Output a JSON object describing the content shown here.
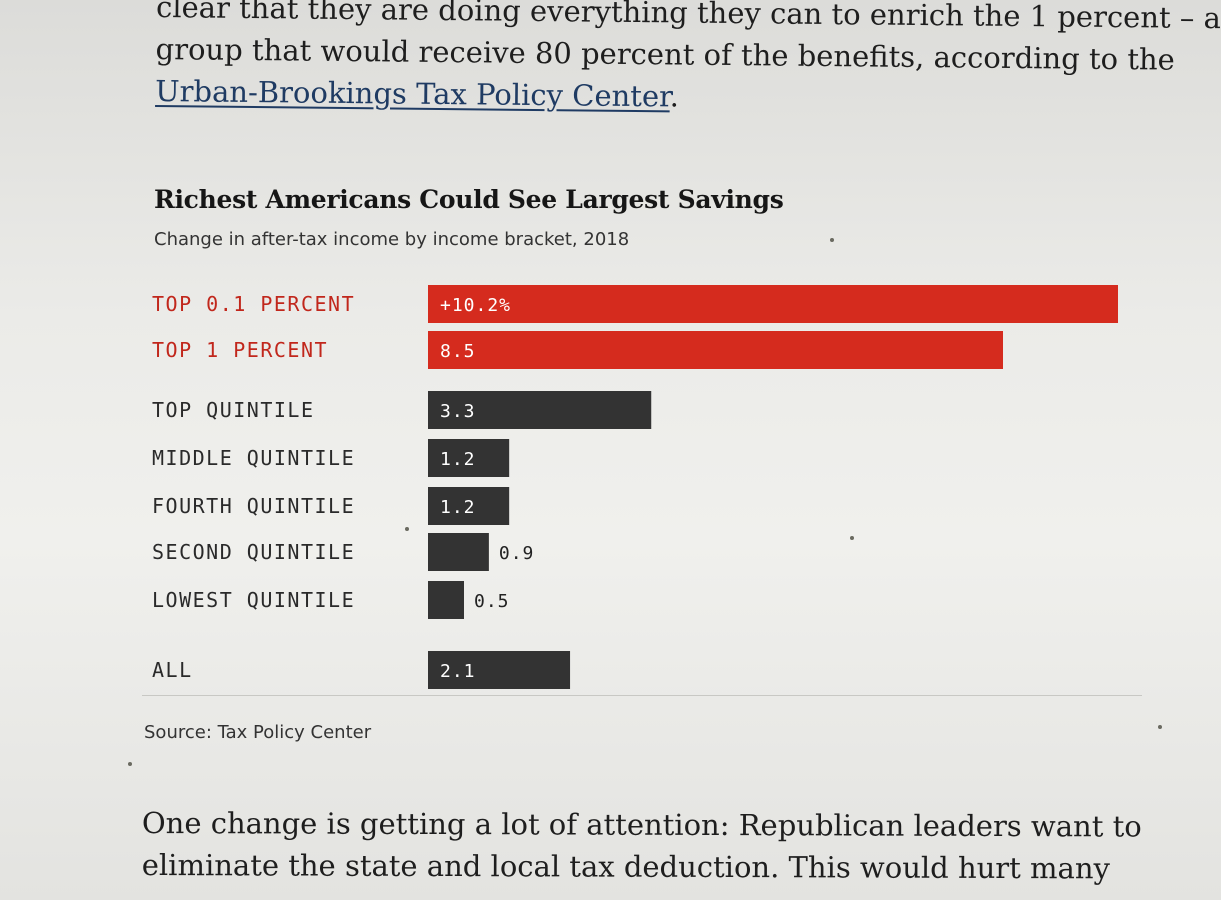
{
  "article": {
    "top_line_1": "clear that they are doing everything they can to enrich the 1 percent – a",
    "top_line_2": "group that would receive 80 percent of the benefits, according to the",
    "top_link": "Urban-Brookings Tax Policy Center",
    "top_link_tail": ".",
    "bottom_line_1": "One change is getting a lot of attention: Republican leaders want to",
    "bottom_line_2": "eliminate the state and local tax deduction. This would hurt many"
  },
  "chart_data": {
    "type": "bar",
    "orientation": "horizontal",
    "title": "Richest Americans Could See Largest Savings",
    "subtitle": "Change in after-tax income by income bracket, 2018",
    "source": "Source: Tax Policy Center",
    "xlim": [
      0,
      10.2
    ],
    "grid": false,
    "colors": {
      "highlight": "#d52b1e",
      "default": "#333333",
      "highlight_label": "#c1271c",
      "default_label": "#2a2a2a"
    },
    "categories": [
      "TOP 0.1 PERCENT",
      "TOP 1 PERCENT",
      "TOP QUINTILE",
      "MIDDLE QUINTILE",
      "FOURTH QUINTILE",
      "SECOND QUINTILE",
      "LOWEST QUINTILE",
      "ALL"
    ],
    "values": [
      10.2,
      8.5,
      3.3,
      1.2,
      1.2,
      0.9,
      0.5,
      2.1
    ],
    "value_labels": [
      "+10.2%",
      "8.5",
      "3.3",
      "1.2",
      "1.2",
      "0.9",
      "0.5",
      "2.1"
    ],
    "highlighted": [
      true,
      true,
      false,
      false,
      false,
      false,
      false,
      false
    ]
  }
}
